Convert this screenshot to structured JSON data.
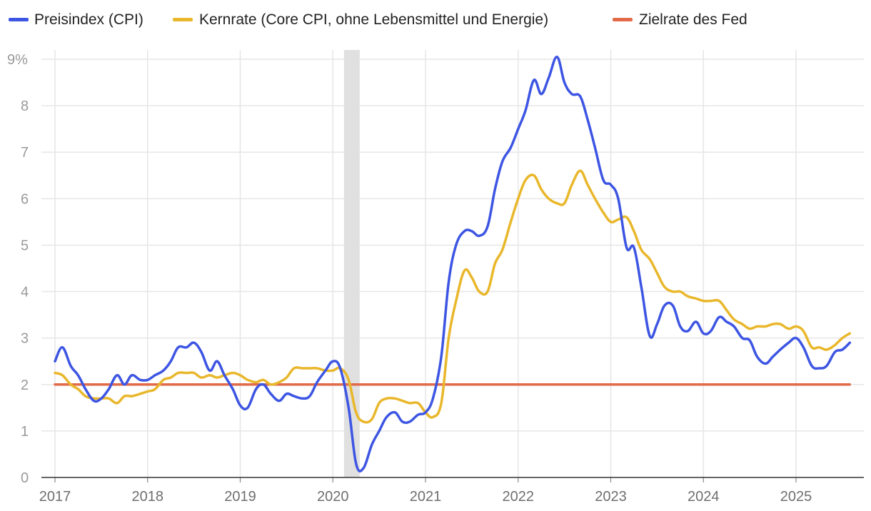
{
  "chart_data": {
    "type": "line",
    "title": "",
    "xlabel": "",
    "ylabel": "",
    "ylim": [
      0,
      9
    ],
    "xlim": [
      2017.0,
      2025.7
    ],
    "y_ticks": [
      "0",
      "1",
      "2",
      "3",
      "4",
      "5",
      "6",
      "7",
      "8",
      "9%"
    ],
    "x_ticks": [
      "2017",
      "2018",
      "2019",
      "2020",
      "2021",
      "2022",
      "2023",
      "2024",
      "2025"
    ],
    "shaded_period": {
      "from": 2020.12,
      "to": 2020.29,
      "color": "#e0e0e0"
    },
    "legend_position": "top-left",
    "series": [
      {
        "name": "Preisindex (CPI)",
        "color": "#3d55e3",
        "points": [
          [
            2017.0,
            2.5
          ],
          [
            2017.08,
            2.8
          ],
          [
            2017.17,
            2.4
          ],
          [
            2017.25,
            2.2
          ],
          [
            2017.33,
            1.9
          ],
          [
            2017.42,
            1.65
          ],
          [
            2017.5,
            1.7
          ],
          [
            2017.58,
            1.9
          ],
          [
            2017.67,
            2.2
          ],
          [
            2017.75,
            2.0
          ],
          [
            2017.83,
            2.2
          ],
          [
            2017.92,
            2.1
          ],
          [
            2018.0,
            2.1
          ],
          [
            2018.08,
            2.2
          ],
          [
            2018.17,
            2.3
          ],
          [
            2018.25,
            2.5
          ],
          [
            2018.33,
            2.8
          ],
          [
            2018.42,
            2.8
          ],
          [
            2018.5,
            2.9
          ],
          [
            2018.58,
            2.7
          ],
          [
            2018.67,
            2.3
          ],
          [
            2018.75,
            2.5
          ],
          [
            2018.83,
            2.2
          ],
          [
            2018.92,
            1.9
          ],
          [
            2019.0,
            1.55
          ],
          [
            2019.08,
            1.5
          ],
          [
            2019.17,
            1.9
          ],
          [
            2019.25,
            2.0
          ],
          [
            2019.33,
            1.8
          ],
          [
            2019.42,
            1.65
          ],
          [
            2019.5,
            1.8
          ],
          [
            2019.58,
            1.75
          ],
          [
            2019.67,
            1.7
          ],
          [
            2019.75,
            1.75
          ],
          [
            2019.83,
            2.05
          ],
          [
            2019.92,
            2.3
          ],
          [
            2020.0,
            2.5
          ],
          [
            2020.08,
            2.35
          ],
          [
            2020.17,
            1.5
          ],
          [
            2020.25,
            0.3
          ],
          [
            2020.33,
            0.2
          ],
          [
            2020.42,
            0.7
          ],
          [
            2020.5,
            1.0
          ],
          [
            2020.58,
            1.3
          ],
          [
            2020.67,
            1.4
          ],
          [
            2020.75,
            1.2
          ],
          [
            2020.83,
            1.2
          ],
          [
            2020.92,
            1.35
          ],
          [
            2021.0,
            1.4
          ],
          [
            2021.08,
            1.7
          ],
          [
            2021.17,
            2.6
          ],
          [
            2021.25,
            4.2
          ],
          [
            2021.33,
            5.0
          ],
          [
            2021.42,
            5.3
          ],
          [
            2021.5,
            5.3
          ],
          [
            2021.58,
            5.2
          ],
          [
            2021.67,
            5.4
          ],
          [
            2021.75,
            6.2
          ],
          [
            2021.83,
            6.8
          ],
          [
            2021.92,
            7.1
          ],
          [
            2022.0,
            7.5
          ],
          [
            2022.08,
            7.9
          ],
          [
            2022.17,
            8.55
          ],
          [
            2022.25,
            8.25
          ],
          [
            2022.33,
            8.6
          ],
          [
            2022.42,
            9.05
          ],
          [
            2022.5,
            8.5
          ],
          [
            2022.58,
            8.25
          ],
          [
            2022.67,
            8.2
          ],
          [
            2022.75,
            7.7
          ],
          [
            2022.83,
            7.1
          ],
          [
            2022.92,
            6.4
          ],
          [
            2023.0,
            6.3
          ],
          [
            2023.08,
            6.0
          ],
          [
            2023.17,
            4.95
          ],
          [
            2023.25,
            4.95
          ],
          [
            2023.33,
            4.1
          ],
          [
            2023.42,
            3.05
          ],
          [
            2023.5,
            3.3
          ],
          [
            2023.58,
            3.7
          ],
          [
            2023.67,
            3.7
          ],
          [
            2023.75,
            3.25
          ],
          [
            2023.83,
            3.15
          ],
          [
            2023.92,
            3.35
          ],
          [
            2024.0,
            3.1
          ],
          [
            2024.08,
            3.15
          ],
          [
            2024.17,
            3.45
          ],
          [
            2024.25,
            3.35
          ],
          [
            2024.33,
            3.25
          ],
          [
            2024.42,
            3.0
          ],
          [
            2024.5,
            2.95
          ],
          [
            2024.58,
            2.6
          ],
          [
            2024.67,
            2.45
          ],
          [
            2024.75,
            2.6
          ],
          [
            2024.83,
            2.75
          ],
          [
            2024.92,
            2.9
          ],
          [
            2025.0,
            3.0
          ],
          [
            2025.08,
            2.8
          ],
          [
            2025.17,
            2.4
          ],
          [
            2025.25,
            2.35
          ],
          [
            2025.33,
            2.4
          ],
          [
            2025.42,
            2.7
          ],
          [
            2025.5,
            2.75
          ],
          [
            2025.58,
            2.9
          ]
        ]
      },
      {
        "name": "Kernrate (Core CPI, ohne Lebensmittel und Energie)",
        "color": "#e9b72b",
        "points": [
          [
            2017.0,
            2.25
          ],
          [
            2017.08,
            2.2
          ],
          [
            2017.17,
            2.0
          ],
          [
            2017.25,
            1.9
          ],
          [
            2017.33,
            1.75
          ],
          [
            2017.42,
            1.7
          ],
          [
            2017.5,
            1.7
          ],
          [
            2017.58,
            1.7
          ],
          [
            2017.67,
            1.6
          ],
          [
            2017.75,
            1.75
          ],
          [
            2017.83,
            1.75
          ],
          [
            2017.92,
            1.8
          ],
          [
            2018.0,
            1.85
          ],
          [
            2018.08,
            1.9
          ],
          [
            2018.17,
            2.1
          ],
          [
            2018.25,
            2.15
          ],
          [
            2018.33,
            2.25
          ],
          [
            2018.42,
            2.25
          ],
          [
            2018.5,
            2.25
          ],
          [
            2018.58,
            2.15
          ],
          [
            2018.67,
            2.2
          ],
          [
            2018.75,
            2.15
          ],
          [
            2018.83,
            2.2
          ],
          [
            2018.92,
            2.25
          ],
          [
            2019.0,
            2.2
          ],
          [
            2019.08,
            2.1
          ],
          [
            2019.17,
            2.05
          ],
          [
            2019.25,
            2.1
          ],
          [
            2019.33,
            2.0
          ],
          [
            2019.42,
            2.05
          ],
          [
            2019.5,
            2.15
          ],
          [
            2019.58,
            2.35
          ],
          [
            2019.67,
            2.35
          ],
          [
            2019.75,
            2.35
          ],
          [
            2019.83,
            2.35
          ],
          [
            2019.92,
            2.3
          ],
          [
            2020.0,
            2.3
          ],
          [
            2020.08,
            2.35
          ],
          [
            2020.17,
            2.1
          ],
          [
            2020.25,
            1.4
          ],
          [
            2020.33,
            1.2
          ],
          [
            2020.42,
            1.25
          ],
          [
            2020.5,
            1.6
          ],
          [
            2020.58,
            1.7
          ],
          [
            2020.67,
            1.7
          ],
          [
            2020.75,
            1.65
          ],
          [
            2020.83,
            1.6
          ],
          [
            2020.92,
            1.6
          ],
          [
            2021.0,
            1.4
          ],
          [
            2021.08,
            1.3
          ],
          [
            2021.17,
            1.6
          ],
          [
            2021.25,
            3.0
          ],
          [
            2021.33,
            3.8
          ],
          [
            2021.42,
            4.45
          ],
          [
            2021.5,
            4.3
          ],
          [
            2021.58,
            4.0
          ],
          [
            2021.67,
            4.0
          ],
          [
            2021.75,
            4.6
          ],
          [
            2021.83,
            4.9
          ],
          [
            2021.92,
            5.5
          ],
          [
            2022.0,
            6.0
          ],
          [
            2022.08,
            6.4
          ],
          [
            2022.17,
            6.5
          ],
          [
            2022.25,
            6.2
          ],
          [
            2022.33,
            6.0
          ],
          [
            2022.42,
            5.9
          ],
          [
            2022.5,
            5.9
          ],
          [
            2022.58,
            6.3
          ],
          [
            2022.67,
            6.6
          ],
          [
            2022.75,
            6.3
          ],
          [
            2022.83,
            6.0
          ],
          [
            2022.92,
            5.7
          ],
          [
            2023.0,
            5.5
          ],
          [
            2023.08,
            5.55
          ],
          [
            2023.17,
            5.6
          ],
          [
            2023.25,
            5.3
          ],
          [
            2023.33,
            4.9
          ],
          [
            2023.42,
            4.7
          ],
          [
            2023.5,
            4.4
          ],
          [
            2023.58,
            4.1
          ],
          [
            2023.67,
            4.0
          ],
          [
            2023.75,
            4.0
          ],
          [
            2023.83,
            3.9
          ],
          [
            2023.92,
            3.85
          ],
          [
            2024.0,
            3.8
          ],
          [
            2024.08,
            3.8
          ],
          [
            2024.17,
            3.8
          ],
          [
            2024.25,
            3.6
          ],
          [
            2024.33,
            3.4
          ],
          [
            2024.42,
            3.3
          ],
          [
            2024.5,
            3.2
          ],
          [
            2024.58,
            3.25
          ],
          [
            2024.67,
            3.25
          ],
          [
            2024.75,
            3.3
          ],
          [
            2024.83,
            3.3
          ],
          [
            2024.92,
            3.2
          ],
          [
            2025.0,
            3.25
          ],
          [
            2025.08,
            3.15
          ],
          [
            2025.17,
            2.8
          ],
          [
            2025.25,
            2.8
          ],
          [
            2025.33,
            2.75
          ],
          [
            2025.42,
            2.85
          ],
          [
            2025.5,
            3.0
          ],
          [
            2025.58,
            3.1
          ]
        ]
      },
      {
        "name": "Zielrate des Fed",
        "color": "#e26a48",
        "points": [
          [
            2017.0,
            2.0
          ],
          [
            2025.58,
            2.0
          ]
        ]
      }
    ]
  }
}
